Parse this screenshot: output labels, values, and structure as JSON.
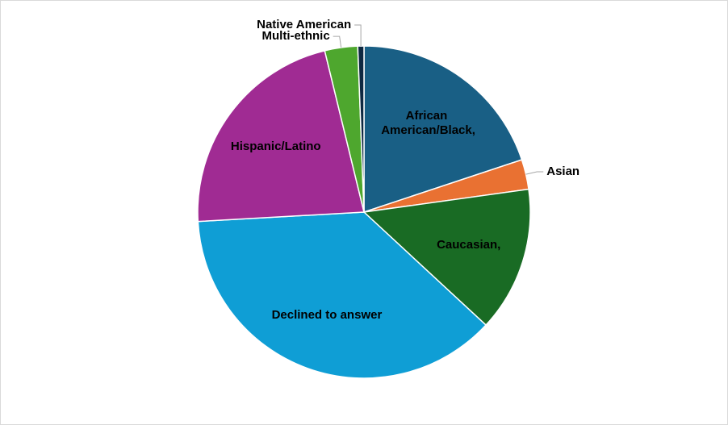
{
  "chart_data": {
    "type": "pie",
    "categories": [
      "African American/Black,",
      "Asian",
      "Caucasian,",
      "Declined to answer",
      "Hispanic/Latino",
      "Multi-ethnic",
      "Native American"
    ],
    "values": [
      19.9,
      2.9,
      14.1,
      37.2,
      22.1,
      3.2,
      0.6
    ],
    "colors": [
      "#195f85",
      "#e97132",
      "#196b24",
      "#0f9ed5",
      "#a02b93",
      "#4ea72e",
      "#0e2841"
    ]
  }
}
